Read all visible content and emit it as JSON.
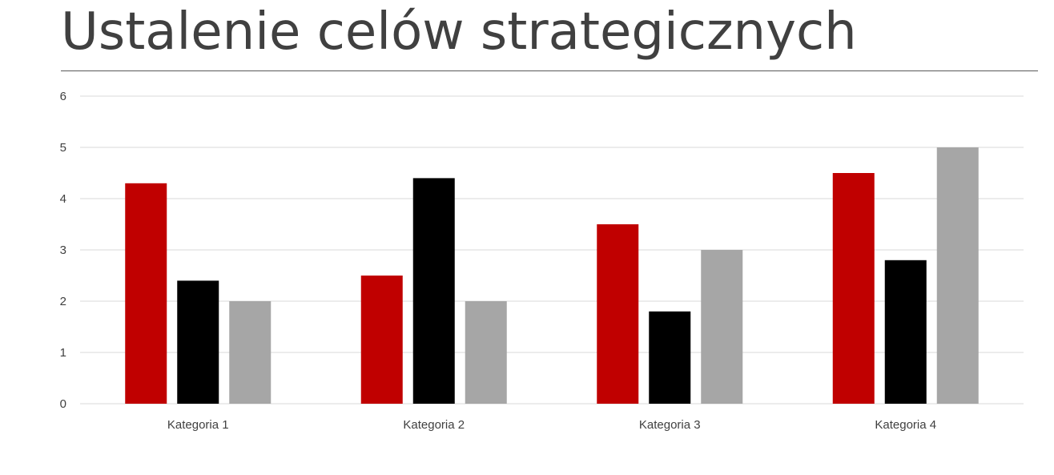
{
  "slide": {
    "title": "Ustalenie celów strategicznych"
  },
  "chart_data": {
    "type": "bar",
    "categories": [
      "Kategoria 1",
      "Kategoria 2",
      "Kategoria 3",
      "Kategoria 4"
    ],
    "series": [
      {
        "values": [
          4.3,
          2.5,
          3.5,
          4.5
        ],
        "color": "#C00000"
      },
      {
        "values": [
          2.4,
          4.4,
          1.8,
          2.8
        ],
        "color": "#000000"
      },
      {
        "values": [
          2.0,
          2.0,
          3.0,
          5.0
        ],
        "color": "#A6A6A6"
      }
    ],
    "title": "",
    "xlabel": "",
    "ylabel": "",
    "ylim": [
      0,
      6
    ],
    "yticks": [
      "0",
      "1",
      "2",
      "3",
      "4",
      "5",
      "6"
    ],
    "grid": true,
    "gridline_color": "#D9D9D9",
    "legend": "none"
  }
}
